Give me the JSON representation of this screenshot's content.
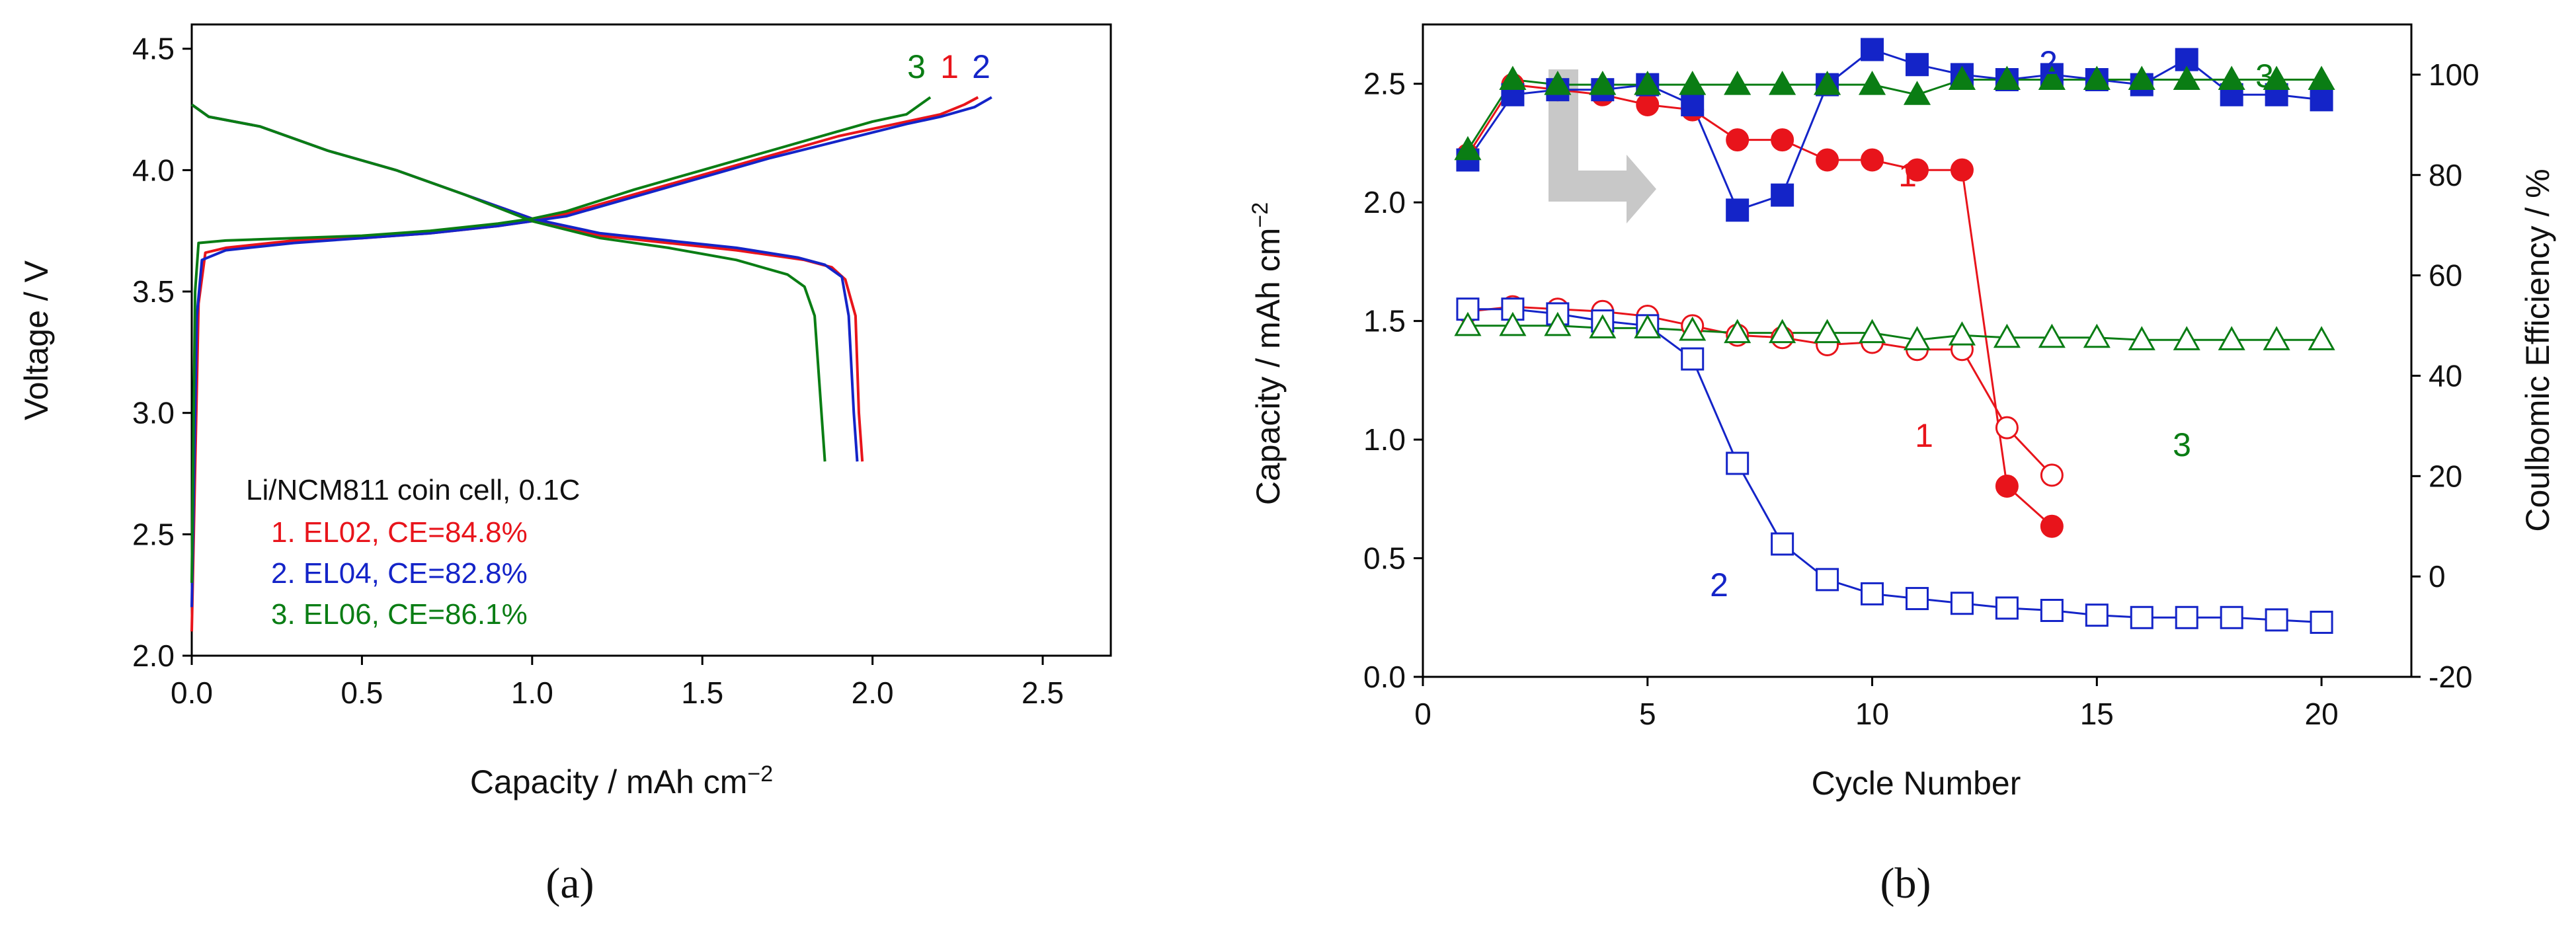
{
  "colors": {
    "s1": "#e8141b",
    "s2": "#1424c8",
    "s3": "#0a7d14",
    "arrow": "#c8c8c8",
    "axis": "#000000"
  },
  "chart_data": [
    {
      "type": "line",
      "panel_label": "(a)",
      "xlabel": "Capacity / mAh cm",
      "xlabel_sup": "−2",
      "ylabel": "Voltage / V",
      "xlim": [
        0,
        2.7
      ],
      "ylim": [
        2.0,
        4.6
      ],
      "xticks": [
        "0.0",
        "0.5",
        "1.0",
        "1.5",
        "2.0",
        "2.5"
      ],
      "yticks": [
        "2.0",
        "2.5",
        "3.0",
        "3.5",
        "4.0",
        "4.5"
      ],
      "legend_title": "Li/NCM811 coin cell, 0.1C",
      "curve_labels": [
        "3",
        "1",
        "2"
      ],
      "series": [
        {
          "name": "1. EL02, CE=84.8%",
          "label": "1",
          "color": "#e8141b",
          "charge": [
            [
              0.0,
              2.1
            ],
            [
              0.02,
              3.45
            ],
            [
              0.04,
              3.66
            ],
            [
              0.1,
              3.68
            ],
            [
              0.3,
              3.71
            ],
            [
              0.5,
              3.72
            ],
            [
              0.7,
              3.74
            ],
            [
              0.9,
              3.77
            ],
            [
              1.0,
              3.79
            ],
            [
              1.1,
              3.82
            ],
            [
              1.3,
              3.9
            ],
            [
              1.5,
              3.98
            ],
            [
              1.7,
              4.06
            ],
            [
              1.9,
              4.14
            ],
            [
              2.1,
              4.2
            ],
            [
              2.2,
              4.23
            ],
            [
              2.27,
              4.27
            ],
            [
              2.31,
              4.3
            ]
          ],
          "discharge": [
            [
              0.0,
              4.27
            ],
            [
              0.05,
              4.22
            ],
            [
              0.2,
              4.18
            ],
            [
              0.4,
              4.08
            ],
            [
              0.6,
              4.0
            ],
            [
              0.8,
              3.9
            ],
            [
              1.0,
              3.8
            ],
            [
              1.2,
              3.73
            ],
            [
              1.4,
              3.7
            ],
            [
              1.6,
              3.67
            ],
            [
              1.8,
              3.63
            ],
            [
              1.88,
              3.6
            ],
            [
              1.92,
              3.55
            ],
            [
              1.95,
              3.4
            ],
            [
              1.96,
              3.0
            ],
            [
              1.97,
              2.8
            ]
          ]
        },
        {
          "name": "2. EL04, CE=82.8%",
          "label": "2",
          "color": "#1424c8",
          "charge": [
            [
              0.0,
              2.2
            ],
            [
              0.015,
              3.4
            ],
            [
              0.03,
              3.63
            ],
            [
              0.1,
              3.67
            ],
            [
              0.3,
              3.7
            ],
            [
              0.5,
              3.72
            ],
            [
              0.7,
              3.74
            ],
            [
              0.9,
              3.77
            ],
            [
              1.0,
              3.79
            ],
            [
              1.1,
              3.81
            ],
            [
              1.3,
              3.89
            ],
            [
              1.5,
              3.97
            ],
            [
              1.7,
              4.05
            ],
            [
              1.9,
              4.12
            ],
            [
              2.1,
              4.19
            ],
            [
              2.2,
              4.22
            ],
            [
              2.3,
              4.26
            ],
            [
              2.35,
              4.3
            ]
          ],
          "discharge": [
            [
              0.0,
              4.27
            ],
            [
              0.05,
              4.22
            ],
            [
              0.2,
              4.18
            ],
            [
              0.4,
              4.08
            ],
            [
              0.6,
              4.0
            ],
            [
              0.8,
              3.9
            ],
            [
              1.0,
              3.8
            ],
            [
              1.2,
              3.74
            ],
            [
              1.4,
              3.71
            ],
            [
              1.6,
              3.68
            ],
            [
              1.78,
              3.64
            ],
            [
              1.86,
              3.61
            ],
            [
              1.91,
              3.56
            ],
            [
              1.93,
              3.4
            ],
            [
              1.945,
              3.0
            ],
            [
              1.955,
              2.8
            ]
          ]
        },
        {
          "name": "3. EL06, CE=86.1%",
          "label": "3",
          "color": "#0a7d14",
          "charge": [
            [
              0.0,
              2.3
            ],
            [
              0.01,
              3.5
            ],
            [
              0.02,
              3.7
            ],
            [
              0.1,
              3.71
            ],
            [
              0.3,
              3.72
            ],
            [
              0.5,
              3.73
            ],
            [
              0.7,
              3.75
            ],
            [
              0.9,
              3.78
            ],
            [
              1.0,
              3.8
            ],
            [
              1.1,
              3.83
            ],
            [
              1.3,
              3.92
            ],
            [
              1.5,
              4.0
            ],
            [
              1.7,
              4.08
            ],
            [
              1.9,
              4.16
            ],
            [
              2.0,
              4.2
            ],
            [
              2.1,
              4.23
            ],
            [
              2.17,
              4.3
            ]
          ],
          "discharge": [
            [
              0.0,
              4.27
            ],
            [
              0.05,
              4.22
            ],
            [
              0.2,
              4.18
            ],
            [
              0.4,
              4.08
            ],
            [
              0.6,
              4.0
            ],
            [
              0.8,
              3.9
            ],
            [
              1.0,
              3.79
            ],
            [
              1.2,
              3.72
            ],
            [
              1.4,
              3.68
            ],
            [
              1.6,
              3.63
            ],
            [
              1.75,
              3.57
            ],
            [
              1.8,
              3.52
            ],
            [
              1.83,
              3.4
            ],
            [
              1.85,
              3.0
            ],
            [
              1.86,
              2.8
            ]
          ]
        }
      ]
    },
    {
      "type": "line",
      "panel_label": "(b)",
      "xlabel": "Cycle Number",
      "ylabel": "Capacity / mAh cm",
      "ylabel_sup": "−2",
      "y2label": "Coulbomic Efficiency / %",
      "xlim": [
        0,
        22
      ],
      "ylim": [
        0,
        2.75
      ],
      "y2lim": [
        -20,
        110
      ],
      "xticks": [
        "0",
        "5",
        "10",
        "15",
        "20"
      ],
      "yticks": [
        "0.0",
        "0.5",
        "1.0",
        "1.5",
        "2.0",
        "2.5"
      ],
      "y2ticks": [
        "-20",
        "0",
        "20",
        "40",
        "60",
        "80",
        "100"
      ],
      "top_labels": [
        "2",
        "3",
        "1"
      ],
      "bottom_labels": [
        "1",
        "3",
        "2"
      ],
      "series": [
        {
          "name": "1",
          "color": "#e8141b",
          "marker": "circle",
          "capacity": [
            1.54,
            1.56,
            1.55,
            1.54,
            1.52,
            1.48,
            1.44,
            1.43,
            1.4,
            1.41,
            1.38,
            1.38,
            1.05,
            0.85
          ],
          "efficiency": [
            84,
            98,
            97,
            96,
            94,
            93,
            87,
            87,
            83,
            83,
            81,
            81,
            18,
            10
          ]
        },
        {
          "name": "2",
          "color": "#1424c8",
          "marker": "square",
          "capacity": [
            1.55,
            1.55,
            1.53,
            1.5,
            1.48,
            1.34,
            0.9,
            0.56,
            0.41,
            0.35,
            0.33,
            0.31,
            0.29,
            0.28,
            0.26,
            0.25,
            0.25,
            0.25,
            0.24,
            0.23
          ],
          "efficiency": [
            83,
            96,
            97,
            97,
            98,
            94,
            73,
            76,
            98,
            105,
            102,
            100,
            99,
            100,
            99,
            98,
            103,
            96,
            96,
            95
          ]
        },
        {
          "name": "3",
          "color": "#0a7d14",
          "marker": "triangle",
          "capacity": [
            1.48,
            1.48,
            1.48,
            1.47,
            1.47,
            1.46,
            1.45,
            1.45,
            1.45,
            1.45,
            1.42,
            1.44,
            1.43,
            1.43,
            1.43,
            1.42,
            1.42,
            1.42,
            1.42,
            1.42
          ],
          "efficiency": [
            85,
            99,
            98,
            98,
            98,
            98,
            98,
            98,
            98,
            98,
            96,
            99,
            99,
            99,
            99,
            99,
            99,
            99,
            99,
            99
          ]
        }
      ]
    }
  ]
}
